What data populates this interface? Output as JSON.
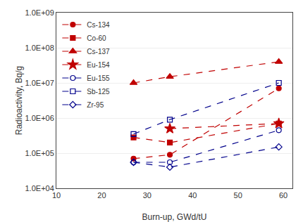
{
  "chart_data": {
    "type": "line",
    "xlabel": "Burn-up, GWd/tU",
    "ylabel": "Radioactivity, Bq/g",
    "log": "y",
    "xlim": [
      10,
      62
    ],
    "ylim": [
      10000,
      1000000000
    ],
    "xticks": [
      10,
      20,
      30,
      40,
      50,
      60
    ],
    "yticks": [
      {
        "value": 10000,
        "label": "1.0E+04"
      },
      {
        "value": 100000,
        "label": "1.0E+05"
      },
      {
        "value": 1000000,
        "label": "1.0E+06"
      },
      {
        "value": 10000000,
        "label": "1.0E+07"
      },
      {
        "value": 100000000,
        "label": "1.0E+08"
      },
      {
        "value": 1000000000,
        "label": "1.0E+09"
      }
    ],
    "grid": "y",
    "legend": "upper left",
    "series": [
      {
        "name": "Cs-134",
        "color": "#C00000",
        "marker": "circle",
        "line_style": "dash",
        "x": [
          27,
          35,
          59
        ],
        "values": [
          70000,
          90000,
          7000000
        ]
      },
      {
        "name": "Co-60",
        "color": "#C00000",
        "marker": "square",
        "line_style": "dash",
        "x": [
          27,
          35,
          59
        ],
        "values": [
          280000,
          200000,
          700000
        ]
      },
      {
        "name": "Cs-137",
        "color": "#C00000",
        "marker": "triangle-up",
        "line_style": "dash",
        "x": [
          27,
          35,
          59
        ],
        "values": [
          10000000,
          15000000,
          40000000
        ]
      },
      {
        "name": "Eu-154",
        "color": "#C00000",
        "marker": "star",
        "line_style": "dash",
        "x": [
          35,
          59
        ],
        "values": [
          500000,
          700000
        ]
      },
      {
        "name": "Eu-155",
        "color": "#00008B",
        "marker": "circle-open",
        "line_style": "dash",
        "x": [
          27,
          35,
          59
        ],
        "values": [
          55000,
          55000,
          450000
        ]
      },
      {
        "name": "Sb-125",
        "color": "#00008B",
        "marker": "square-open",
        "line_style": "dash",
        "x": [
          27,
          35,
          59
        ],
        "values": [
          350000,
          900000,
          10000000
        ]
      },
      {
        "name": "Zr-95",
        "color": "#00008B",
        "marker": "diamond-open",
        "line_style": "dash",
        "x": [
          27,
          35,
          59
        ],
        "values": [
          55000,
          40000,
          150000
        ]
      }
    ]
  }
}
